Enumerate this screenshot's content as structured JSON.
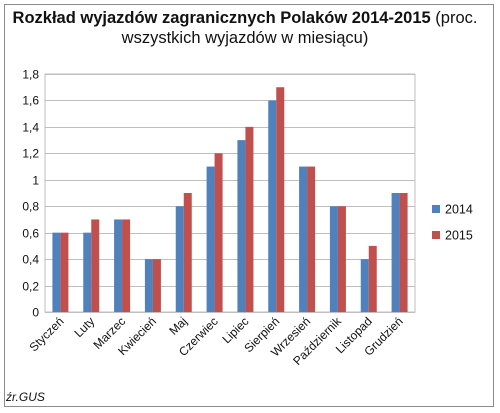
{
  "chart_data": {
    "type": "bar",
    "title_bold": "Rozkład wyjazdów zagranicznych Polaków 2014-2015",
    "title_rest": "(proc.",
    "title_line2": "wszystkich wyjazdów w miesiącu)",
    "categories": [
      "Styczeń",
      "Luty",
      "Marzec",
      "Kwiecień",
      "Maj",
      "Czerwiec",
      "Lipiec",
      "Sierpień",
      "Wrzesień",
      "Październik",
      "Listopad",
      "Grudzień"
    ],
    "series": [
      {
        "name": "2014",
        "color": "#4f81bd",
        "values": [
          0.6,
          0.6,
          0.7,
          0.4,
          0.8,
          1.1,
          1.3,
          1.6,
          1.1,
          0.8,
          0.4,
          0.9
        ]
      },
      {
        "name": "2015",
        "color": "#c0504d",
        "values": [
          0.6,
          0.7,
          0.7,
          0.4,
          0.9,
          1.2,
          1.4,
          1.7,
          1.1,
          0.8,
          0.5,
          0.9
        ]
      }
    ],
    "ylim": [
      0,
      1.8
    ],
    "yticks": [
      "0",
      "0,2",
      "0,4",
      "0,6",
      "0,8",
      "1",
      "1,2",
      "1,4",
      "1,6",
      "1,8"
    ],
    "grid": true,
    "legend_position": "right"
  },
  "source": "źr.GUS"
}
